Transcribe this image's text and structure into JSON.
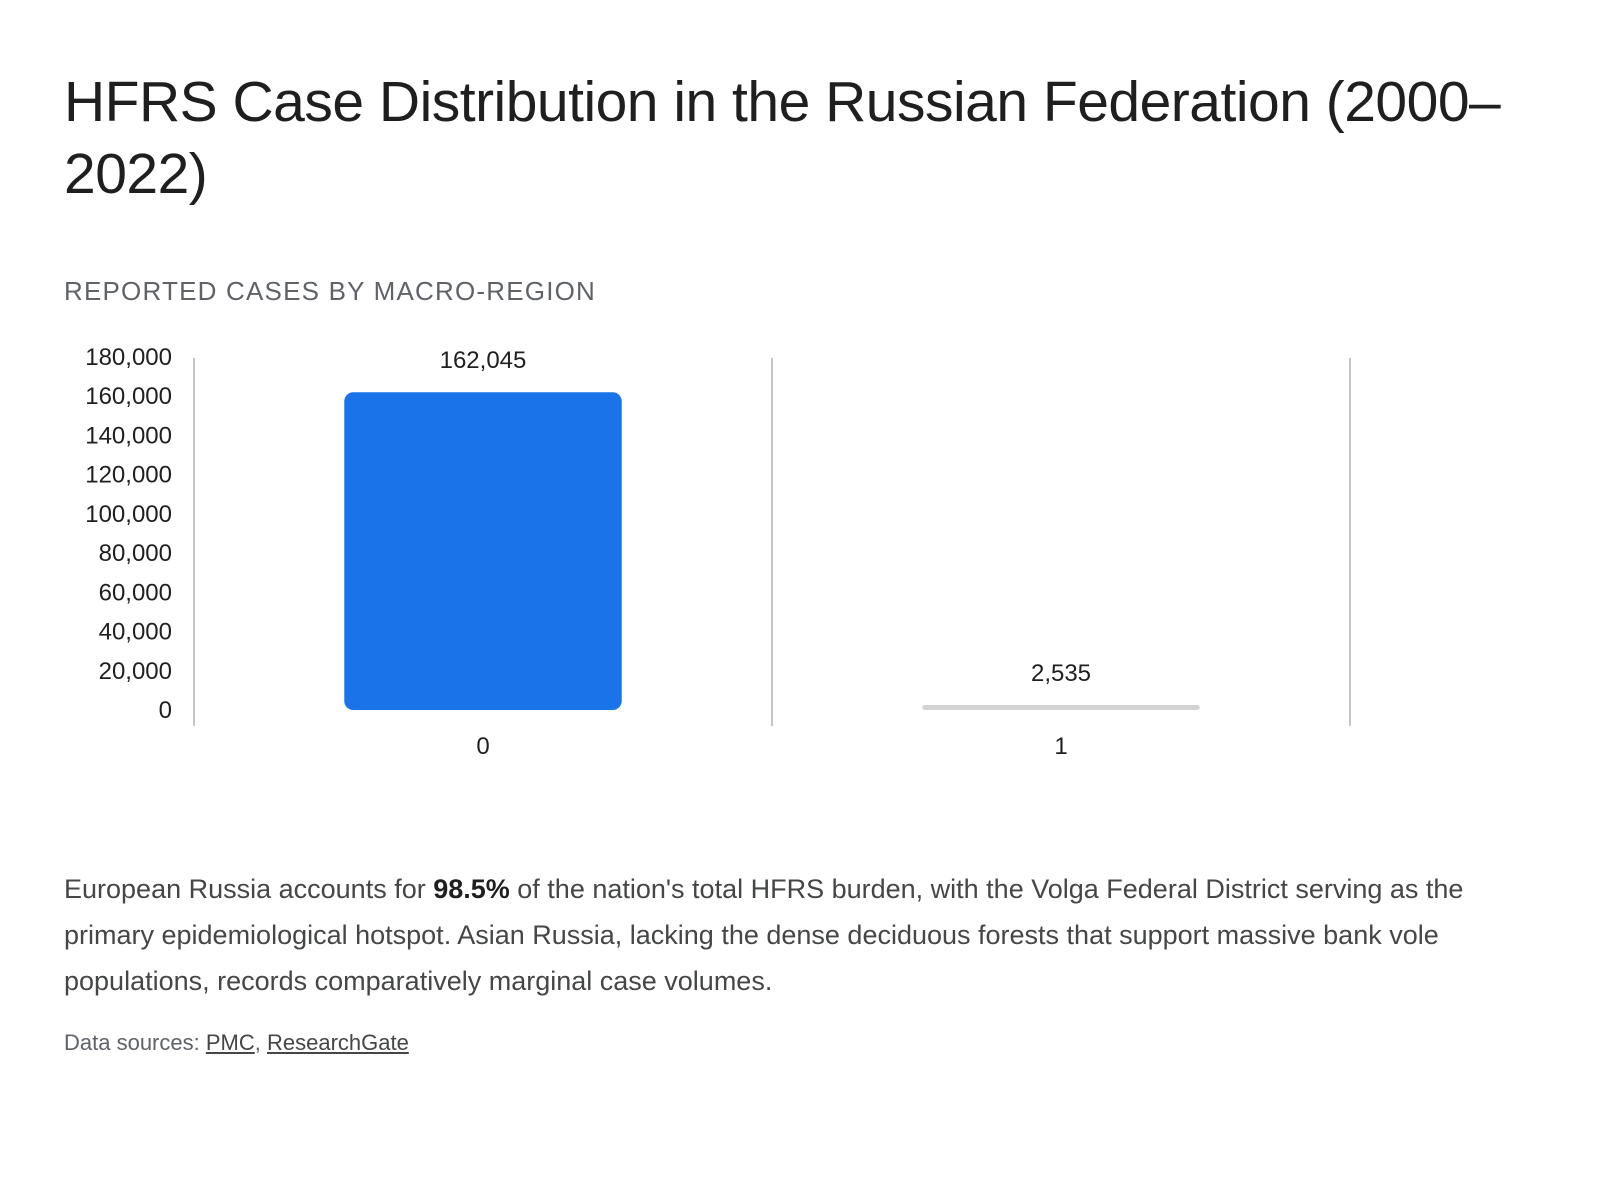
{
  "header": {
    "title": "HFRS Case Distribution in the Russian Federation (2000–2022)",
    "subtitle": "REPORTED CASES BY MACRO-REGION"
  },
  "chart_data": {
    "type": "bar",
    "title": "",
    "xlabel": "",
    "ylabel": "",
    "categories": [
      "0",
      "1"
    ],
    "values": [
      162045,
      2535
    ],
    "value_labels": [
      "162,045",
      "2,535"
    ],
    "ylim": [
      0,
      180000
    ],
    "yticks": [
      0,
      20000,
      40000,
      60000,
      80000,
      100000,
      120000,
      140000,
      160000,
      180000
    ],
    "ytick_labels": [
      "0",
      "20,000",
      "40,000",
      "60,000",
      "80,000",
      "100,000",
      "120,000",
      "140,000",
      "160,000",
      "180,000"
    ],
    "bar_colors": [
      "#1a73e8",
      "#d3d3d3"
    ],
    "grid": "vertical category separators",
    "legend": "none"
  },
  "summary": {
    "before": "European Russia accounts for ",
    "highlight": "98.5%",
    "after": " of the nation's total HFRS burden, with the Volga Federal District serving as the primary epidemiological hotspot. Asian Russia, lacking the dense deciduous forests that support massive bank vole populations, records comparatively marginal case volumes."
  },
  "sources": {
    "label": "Data sources: ",
    "links": [
      "PMC",
      "ResearchGate"
    ],
    "separator": ", "
  }
}
